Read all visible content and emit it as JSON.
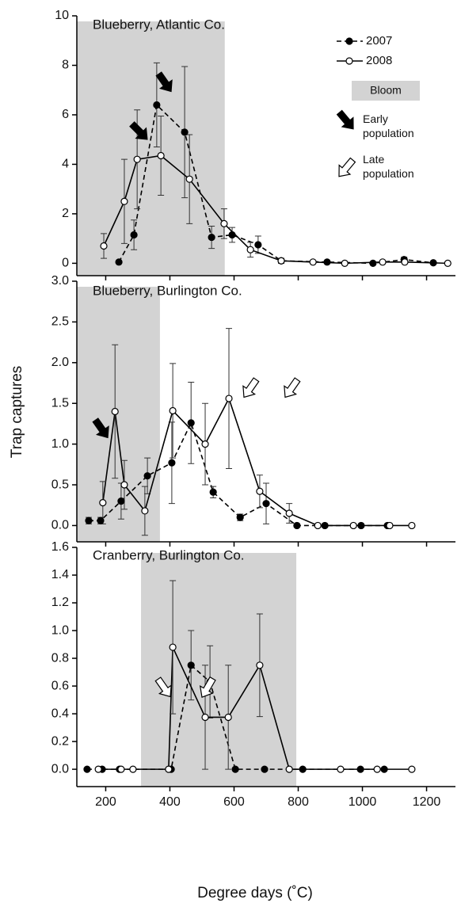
{
  "chart_data": [
    {
      "type": "line",
      "title": "Blueberry, Atlantic Co.",
      "xlim": [
        110,
        1290
      ],
      "ylim": [
        -0.5,
        10
      ],
      "xticks": [
        200,
        400,
        600,
        800,
        1000,
        1200
      ],
      "yticks": [
        0,
        2,
        4,
        6,
        8,
        10
      ],
      "xtick_labels": false,
      "bloom": [
        110,
        571
      ],
      "bloom_color": "#d3d3d3",
      "legend": true,
      "bloom_label": "Bloom",
      "early_label": "Early population",
      "late_label": "Late population",
      "series": [
        {
          "name": "2007",
          "color": "#000000",
          "dashed": true,
          "marker": "filled",
          "x": [
            241,
            288,
            359,
            446,
            530,
            594,
            675,
            747,
            890,
            1033,
            1130,
            1221
          ],
          "values": [
            0.05,
            1.15,
            6.4,
            5.3,
            1.05,
            1.15,
            0.75,
            0.1,
            0.05,
            0,
            0.15,
            0.02
          ],
          "errors": [
            0,
            0.6,
            1.7,
            2.65,
            0.45,
            0.3,
            0.35,
            0.1,
            0.05,
            0,
            0.1,
            0.02
          ]
        },
        {
          "name": "2008",
          "color": "#000000",
          "dashed": false,
          "marker": "open",
          "x": [
            194,
            258,
            298,
            372,
            461,
            569,
            651,
            747,
            846,
            945,
            1063,
            1132,
            1266
          ],
          "values": [
            0.7,
            2.5,
            4.2,
            4.35,
            3.4,
            1.6,
            0.55,
            0.1,
            0.05,
            0,
            0.05,
            0.05,
            0
          ],
          "errors": [
            0.5,
            1.7,
            2.0,
            1.6,
            1.8,
            0.6,
            0.3,
            0.1,
            0.05,
            0,
            0.05,
            0.05,
            0
          ]
        }
      ]
    },
    {
      "type": "line",
      "title": "Blueberry, Burlington Co.",
      "y_label": "Trap captures",
      "xlim": [
        110,
        1290
      ],
      "ylim": [
        -0.2,
        3.0
      ],
      "xticks": [
        200,
        400,
        600,
        800,
        1000,
        1200
      ],
      "yticks": [
        {
          "value": 0,
          "label": "0.0"
        },
        0.5,
        {
          "value": 1,
          "label": "1.0"
        },
        1.5,
        {
          "value": 2,
          "label": "2.0"
        },
        2.5,
        {
          "value": 3,
          "label": "3.0"
        }
      ],
      "xtick_labels": false,
      "bloom": [
        110,
        369
      ],
      "bloom_color": "#d3d3d3",
      "legend": false,
      "series": [
        {
          "name": "2007",
          "color": "#000000",
          "dashed": true,
          "marker": "filled",
          "x": [
            147,
            184,
            248,
            330,
            406,
            466,
            535,
            619,
            700,
            796,
            883,
            996,
            1078
          ],
          "values": [
            0.06,
            0.06,
            0.3,
            0.61,
            0.77,
            1.26,
            0.41,
            0.1,
            0.27,
            0,
            0,
            0,
            0
          ],
          "errors": [
            0.04,
            0.04,
            0.22,
            0.22,
            0.5,
            0.5,
            0.07,
            0.04,
            0.25,
            0,
            0,
            0,
            0
          ]
        },
        {
          "name": "2008",
          "color": "#000000",
          "dashed": false,
          "marker": "open",
          "x": [
            191,
            229,
            258,
            322,
            409,
            510,
            584,
            680,
            772,
            861,
            972,
            1085,
            1154
          ],
          "values": [
            0.28,
            1.4,
            0.5,
            0.18,
            1.41,
            1.0,
            1.56,
            0.42,
            0.15,
            0,
            0,
            0,
            0
          ],
          "errors": [
            0.26,
            0.82,
            0.3,
            0.3,
            0.58,
            0.5,
            0.86,
            0.2,
            0.12,
            0,
            0,
            0,
            0
          ]
        }
      ]
    },
    {
      "type": "line",
      "title": "Cranberry, Burlington Co.",
      "x_label": "Degree days (˚C)",
      "xlim": [
        110,
        1290
      ],
      "ylim": [
        -0.125,
        1.6
      ],
      "xticks": [
        200,
        400,
        600,
        800,
        1000,
        1200
      ],
      "yticks": [
        {
          "value": 0,
          "label": "0.0"
        },
        0.2,
        0.4,
        0.6,
        0.8,
        {
          "value": 1,
          "label": "1.0"
        },
        1.2,
        1.4,
        1.6
      ],
      "xtick_labels": true,
      "bloom": [
        310,
        794
      ],
      "bloom_color": "#d3d3d3",
      "legend": false,
      "series": [
        {
          "name": "2007",
          "color": "#000000",
          "dashed": true,
          "marker": "filled",
          "x": [
            142,
            189,
            243,
            404,
            466,
            525,
            604,
            695,
            814,
            994,
            1068
          ],
          "values": [
            0,
            0,
            0,
            0,
            0.75,
            0.63,
            0,
            0,
            0,
            0,
            0
          ],
          "errors": [
            0,
            0,
            0,
            0,
            0.25,
            0.26,
            0,
            0,
            0,
            0,
            0
          ]
        },
        {
          "name": "2008",
          "color": "#000000",
          "dashed": false,
          "marker": "open",
          "x": [
            177,
            248,
            285,
            396,
            409,
            510,
            582,
            680,
            772,
            932,
            1046,
            1154
          ],
          "values": [
            0,
            0,
            0,
            0,
            0.88,
            0.375,
            0.375,
            0.75,
            0,
            0,
            0,
            0
          ],
          "errors": [
            0,
            0,
            0,
            0,
            0.48,
            0.375,
            0.375,
            0.37,
            0,
            0,
            0,
            0
          ]
        }
      ]
    }
  ]
}
